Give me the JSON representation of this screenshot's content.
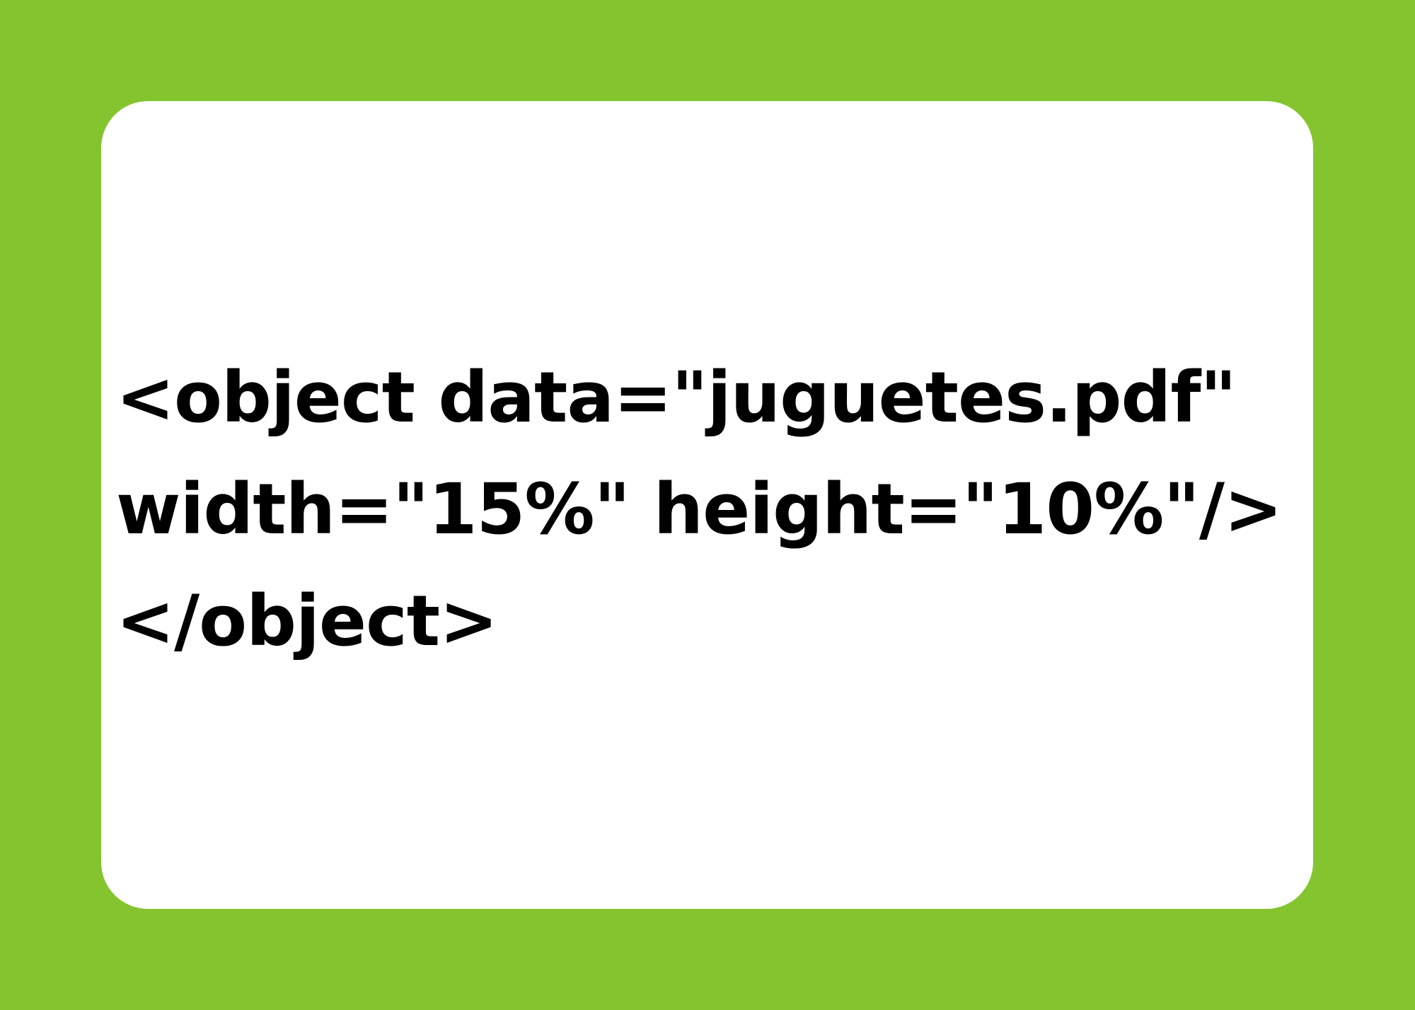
{
  "code": {
    "lines": [
      "<object data=\"juguetes.pdf\"",
      "width=\"15%\" height=\"10%\"/>",
      "</object>"
    ]
  },
  "colors": {
    "background": "#84c52f",
    "card": "#ffffff",
    "text": "#000000"
  }
}
